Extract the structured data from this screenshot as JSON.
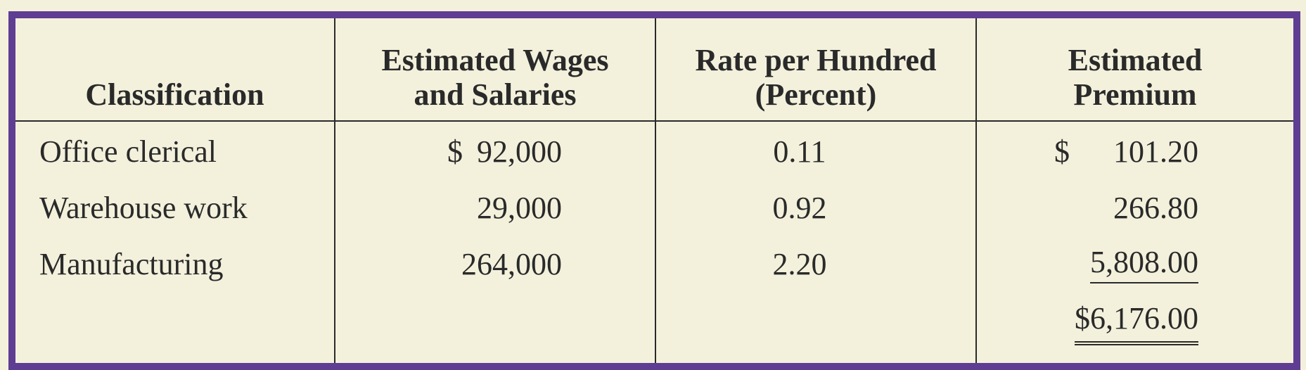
{
  "table": {
    "headers": {
      "classification": "Classification",
      "wages_line1": "Estimated Wages",
      "wages_line2": "and Salaries",
      "rate_line1": "Rate per Hundred",
      "rate_line2": "(Percent)",
      "premium_line1": "Estimated",
      "premium_line2": "Premium"
    },
    "rows": [
      {
        "classification": "Office clerical",
        "wages_currency": "$",
        "wages": "92,000",
        "rate": "0.11",
        "premium_currency": "$",
        "premium": "101.20"
      },
      {
        "classification": "Warehouse work",
        "wages": "29,000",
        "rate": "0.92",
        "premium": "266.80"
      },
      {
        "classification": "Manufacturing",
        "wages": "264,000",
        "rate": "2.20",
        "premium": "5,808.00"
      }
    ],
    "total_premium": "$6,176.00"
  },
  "colors": {
    "border": "#5e3d92",
    "background": "#f3f1dc",
    "text": "#2a2a2a"
  }
}
